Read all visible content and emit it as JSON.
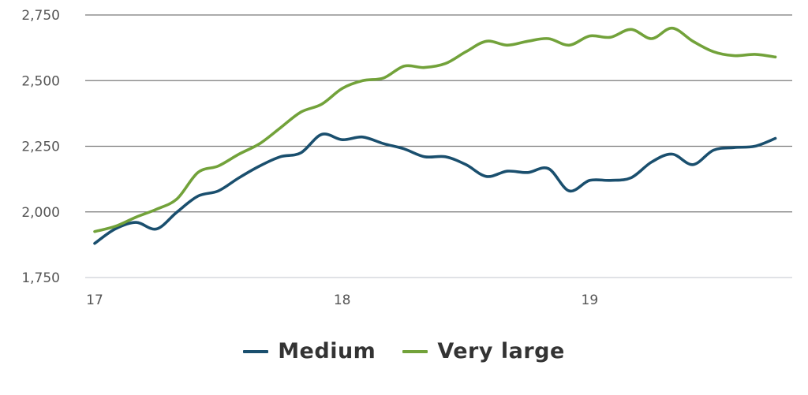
{
  "chart_data": {
    "type": "line",
    "title": "",
    "xlabel": "",
    "ylabel": "",
    "x_ticks": [
      "17",
      "18",
      "19"
    ],
    "y_ticks": [
      "1,750",
      "2,000",
      "2,250",
      "2,500",
      "2,750"
    ],
    "x_range": [
      17.0,
      19.78
    ],
    "ylim": [
      1750,
      2750
    ],
    "grid": true,
    "legend_position": "bottom",
    "x": [
      17.0,
      17.083,
      17.167,
      17.25,
      17.333,
      17.417,
      17.5,
      17.583,
      17.667,
      17.75,
      17.833,
      17.917,
      18.0,
      18.083,
      18.167,
      18.25,
      18.333,
      18.417,
      18.5,
      18.583,
      18.667,
      18.75,
      18.833,
      18.917,
      19.0,
      19.083,
      19.167,
      19.25,
      19.333,
      19.417,
      19.5,
      19.583,
      19.667,
      19.75
    ],
    "series": [
      {
        "name": "Medium",
        "color": "#1a4f6e",
        "values": [
          1880,
          1935,
          1960,
          1935,
          2000,
          2060,
          2080,
          2130,
          2175,
          2210,
          2225,
          2295,
          2275,
          2285,
          2260,
          2240,
          2210,
          2210,
          2180,
          2135,
          2155,
          2150,
          2165,
          2080,
          2120,
          2120,
          2130,
          2190,
          2220,
          2180,
          2235,
          2245,
          2250,
          2280
        ]
      },
      {
        "name": "Very large",
        "color": "#72a23a",
        "values": [
          1925,
          1945,
          1980,
          2010,
          2050,
          2150,
          2175,
          2220,
          2260,
          2320,
          2380,
          2410,
          2470,
          2500,
          2510,
          2555,
          2550,
          2565,
          2610,
          2650,
          2635,
          2650,
          2660,
          2635,
          2670,
          2665,
          2695,
          2660,
          2700,
          2650,
          2610,
          2595,
          2600,
          2590
        ]
      }
    ]
  }
}
